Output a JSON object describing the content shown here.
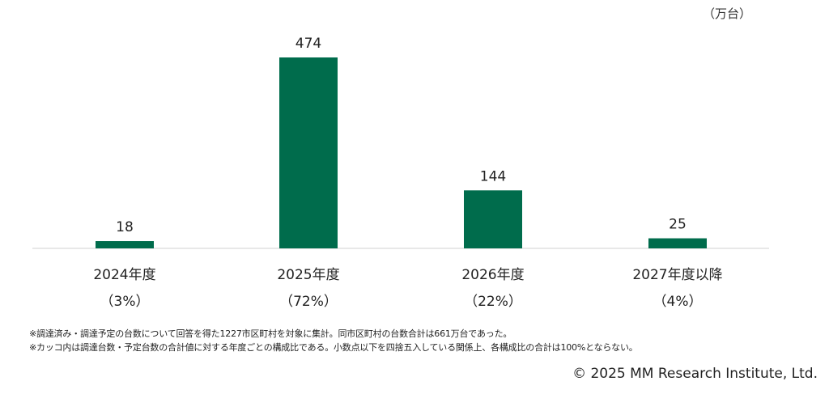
{
  "unit_label": "（万台）",
  "chart_data": {
    "type": "bar",
    "categories": [
      "2024年度",
      "2025年度",
      "2026年度",
      "2027年度以降"
    ],
    "share_labels": [
      "（3%）",
      "（72%）",
      "（22%）",
      "（4%）"
    ],
    "values": [
      18,
      474,
      144,
      25
    ],
    "ylim": [
      0,
      500
    ],
    "bar_color": "#006c4c",
    "grid": false,
    "legend": "none"
  },
  "notes": [
    "※調達済み・調達予定の台数について回答を得た1227市区町村を対象に集計。同市区町村の台数合計は661万台であった。",
    "※カッコ内は調達台数・予定台数の合計値に対する年度ごとの構成比である。小数点以下を四捨五入している関係上、各構成比の合計は100%とならない。"
  ],
  "copyright": "© 2025 MM Research Institute, Ltd."
}
